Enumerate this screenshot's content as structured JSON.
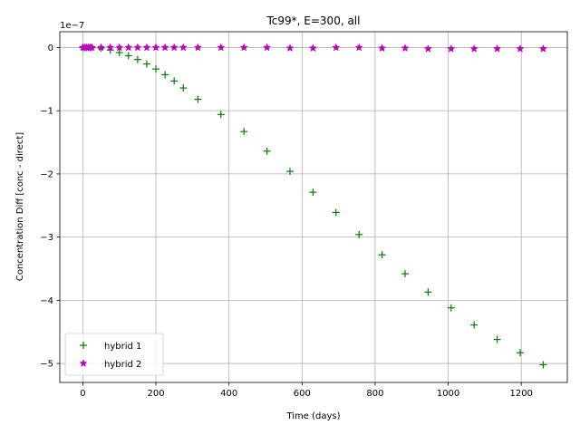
{
  "chart_data": {
    "type": "scatter",
    "title": "Tc99*, E=300, all",
    "xlabel": "Time (days)",
    "ylabel": "Concentration Diff [conc - direct]",
    "y_scale_label": "1e−7",
    "xlim": [
      -63,
      1326
    ],
    "ylim": [
      -5.3,
      0.25
    ],
    "x_ticks": [
      0,
      200,
      400,
      600,
      800,
      1000,
      1200
    ],
    "x_tick_labels": [
      "0",
      "200",
      "400",
      "600",
      "800",
      "1000",
      "1200"
    ],
    "y_ticks": [
      0,
      -1,
      -2,
      -3,
      -4,
      -5
    ],
    "y_tick_labels": [
      "0",
      "−1",
      "−2",
      "−3",
      "−4",
      "−5"
    ],
    "grid": true,
    "legend_position": "lower-left",
    "series": [
      {
        "name": "hybrid 1",
        "marker": "plus",
        "color": "#008000",
        "x": [
          0,
          5,
          10,
          15,
          20,
          25,
          50,
          75,
          100,
          125,
          150,
          175,
          200,
          225,
          250,
          275,
          315,
          378,
          441,
          504,
          567,
          630,
          693,
          756,
          819,
          882,
          945,
          1008,
          1071,
          1134,
          1197,
          1260
        ],
        "y": [
          0,
          0,
          0,
          0,
          0,
          0,
          -0.01,
          -0.04,
          -0.08,
          -0.13,
          -0.19,
          -0.26,
          -0.34,
          -0.43,
          -0.53,
          -0.64,
          -0.82,
          -1.06,
          -1.33,
          -1.64,
          -1.96,
          -2.29,
          -2.61,
          -2.96,
          -3.28,
          -3.58,
          -3.87,
          -4.12,
          -4.39,
          -4.62,
          -4.83,
          -5.02
        ]
      },
      {
        "name": "hybrid 2",
        "marker": "star",
        "color": "#bf00bf",
        "x": [
          0,
          5,
          10,
          15,
          20,
          25,
          50,
          75,
          100,
          125,
          150,
          175,
          200,
          225,
          250,
          275,
          315,
          378,
          441,
          504,
          567,
          630,
          693,
          756,
          819,
          882,
          945,
          1008,
          1071,
          1134,
          1197,
          1260
        ],
        "y": [
          0,
          0,
          0,
          0,
          0,
          0,
          0,
          0,
          0,
          0,
          0,
          0,
          0,
          0,
          0,
          0,
          0,
          0,
          0,
          0,
          -0.01,
          -0.01,
          0,
          0,
          -0.01,
          -0.01,
          -0.02,
          -0.02,
          -0.02,
          -0.02,
          -0.02,
          -0.02
        ]
      }
    ]
  }
}
